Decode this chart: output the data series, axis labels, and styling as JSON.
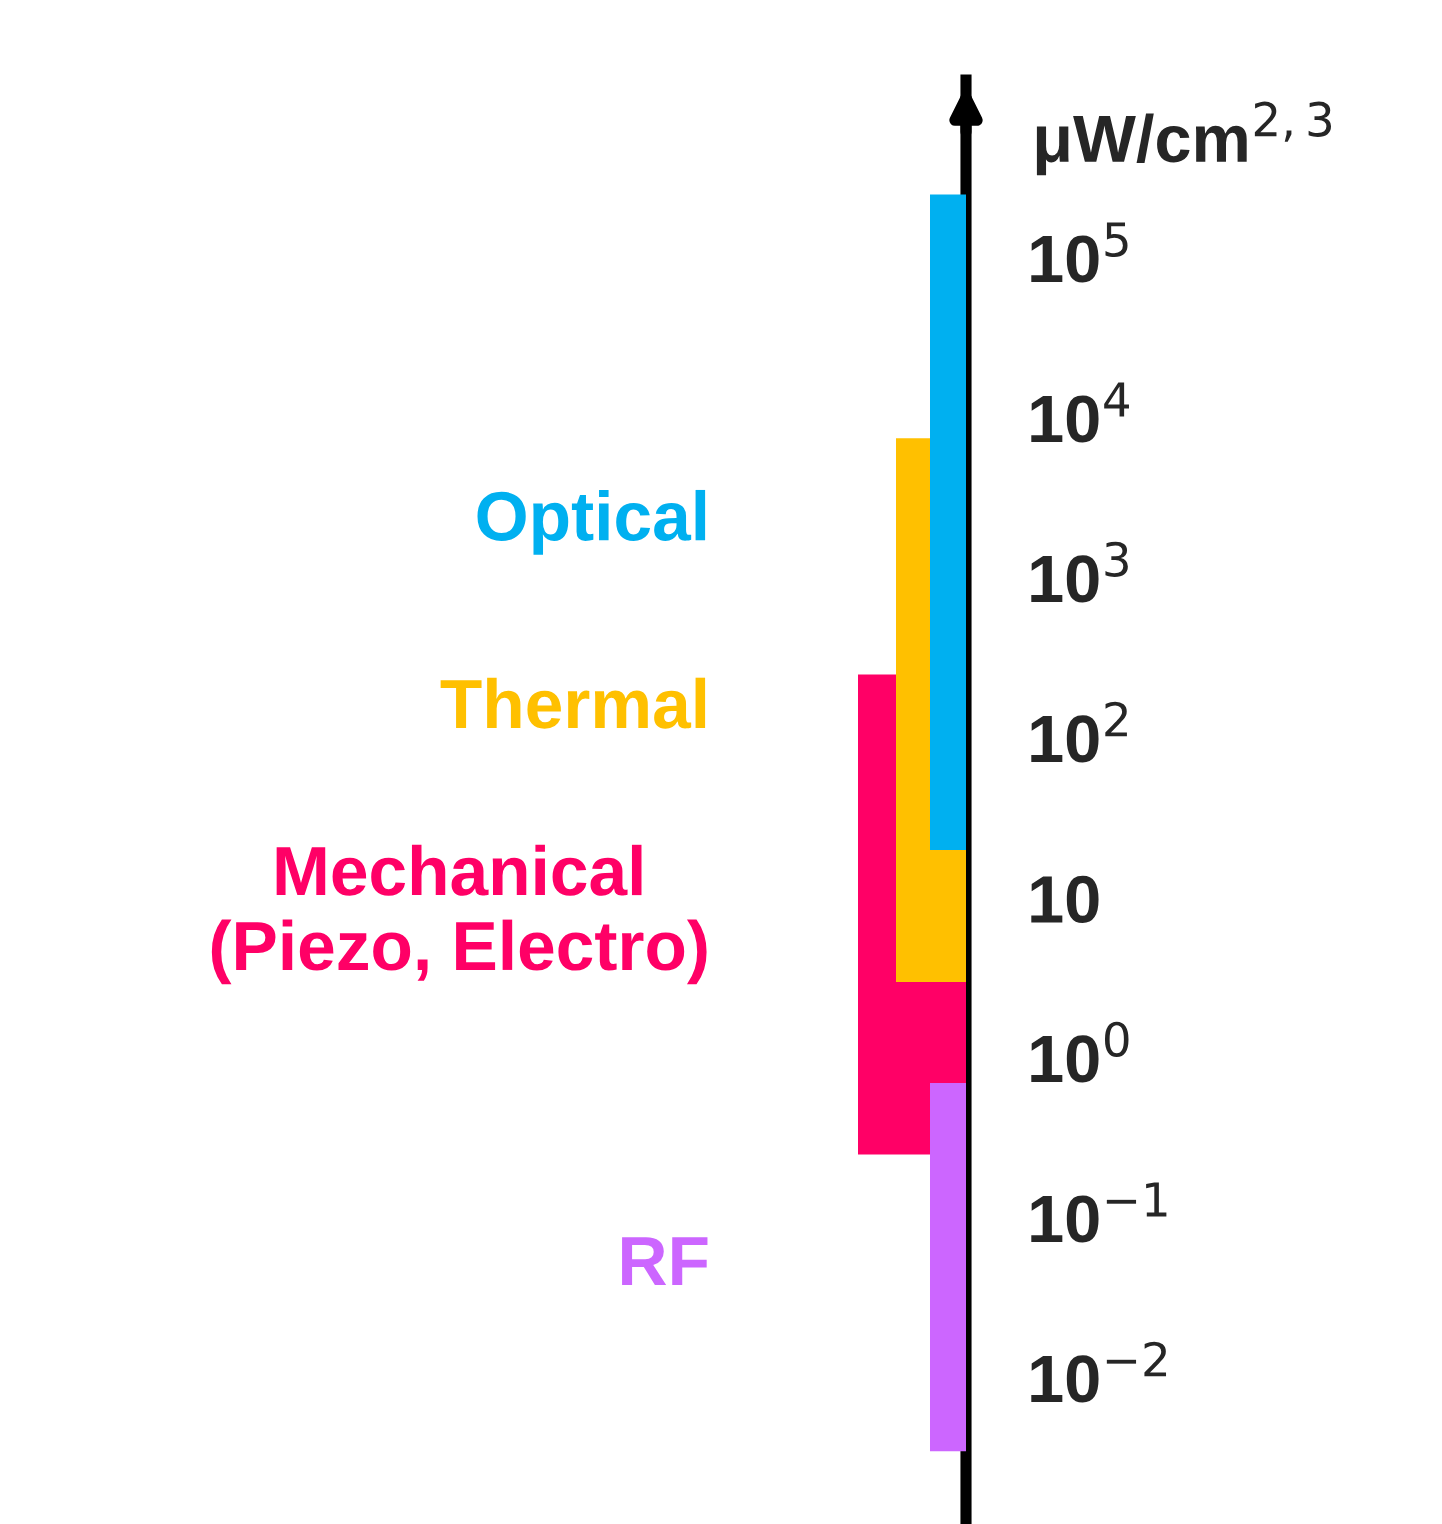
{
  "chart_data": {
    "type": "bar",
    "categories": [
      null
    ],
    "ylabel": "μW/cm$^{2,3}$",
    "log": true,
    "ylim": [
      0.0013,
      1300000
    ],
    "yticks": [
      {
        "value": 0.01,
        "label": "10$^{−2}$"
      },
      {
        "value": 0.1,
        "label": "10$^{−1}$"
      },
      {
        "value": 1,
        "label": "10$^{0}$"
      },
      10,
      {
        "value": 100,
        "label": "10$^{2}$"
      },
      {
        "value": 1000,
        "label": "10$^{3}$"
      },
      {
        "value": 10000,
        "label": "10$^{4}$"
      },
      {
        "value": 100000,
        "label": "10$^{5}$"
      }
    ],
    "series": [
      {
        "name": "Optical",
        "color": "#00b0f0",
        "values": [
          249980
        ],
        "base": [
          20
        ]
      },
      {
        "name": "Thermal",
        "color": "#ffc000",
        "values": [
          7497
        ],
        "base": [
          3
        ]
      },
      {
        "name": "Mechanical\n(Piezo, Electro)",
        "color": "#ff0066",
        "values": [
          249.75
        ],
        "base": [
          0.25
        ]
      },
      {
        "name": "RF",
        "color": "#cc66ff",
        "values": [
          0.6965
        ],
        "base": [
          0.0035
        ]
      }
    ],
    "grid": false,
    "legend": false
  }
}
